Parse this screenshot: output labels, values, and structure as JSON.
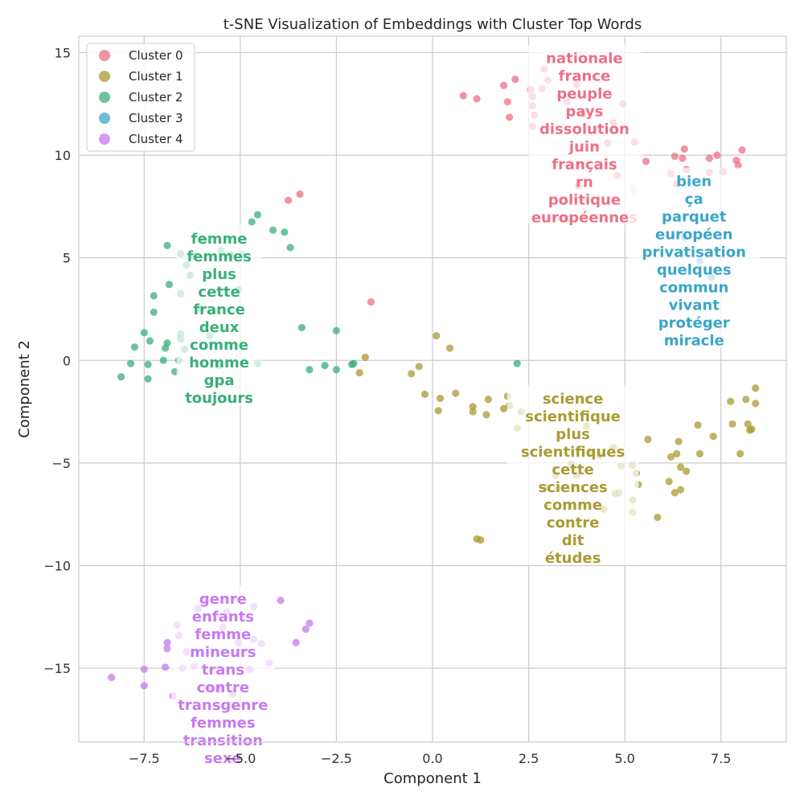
{
  "chart_data": {
    "type": "scatter",
    "title": "t-SNE Visualization of Embeddings with Cluster Top Words",
    "xlabel": "Component 1",
    "ylabel": "Component 2",
    "xlim": [
      -9.2,
      9.2
    ],
    "ylim": [
      -18.6,
      15.8
    ],
    "xticks": [
      -7.5,
      -5.0,
      -2.5,
      0.0,
      2.5,
      5.0,
      7.5
    ],
    "xtick_labels": [
      "−7.5",
      "−5.0",
      "−2.5",
      "0.0",
      "2.5",
      "5.0",
      "7.5"
    ],
    "yticks": [
      15,
      10,
      5,
      0,
      -5,
      -10,
      -15
    ],
    "ytick_labels": [
      "15",
      "10",
      "5",
      "0",
      "−5",
      "−10",
      "−15"
    ],
    "grid": true,
    "legend_position": "top-left",
    "series": [
      {
        "name": "Cluster 0",
        "color": "#ee6f86",
        "points": [
          [
            0.8,
            12.9
          ],
          [
            1.15,
            12.75
          ],
          [
            1.85,
            13.4
          ],
          [
            1.95,
            12.6
          ],
          [
            2.0,
            11.85
          ],
          [
            2.15,
            13.7
          ],
          [
            2.55,
            13.2
          ],
          [
            2.6,
            12.85
          ],
          [
            2.6,
            12.4
          ],
          [
            2.65,
            11.95
          ],
          [
            2.6,
            11.4
          ],
          [
            2.85,
            13.25
          ],
          [
            2.9,
            14.2
          ],
          [
            3.0,
            13.65
          ],
          [
            3.5,
            12.6
          ],
          [
            3.75,
            13.45
          ],
          [
            3.8,
            8.5
          ],
          [
            3.9,
            12.0
          ],
          [
            4.55,
            10.6
          ],
          [
            4.7,
            11.6
          ],
          [
            4.8,
            9.0
          ],
          [
            4.95,
            12.5
          ],
          [
            5.2,
            8.4
          ],
          [
            5.25,
            8.2
          ],
          [
            5.25,
            10.65
          ],
          [
            5.55,
            9.7
          ],
          [
            6.2,
            9.1
          ],
          [
            6.3,
            9.95
          ],
          [
            6.35,
            8.6
          ],
          [
            6.5,
            9.85
          ],
          [
            6.55,
            10.3
          ],
          [
            6.6,
            9.3
          ],
          [
            7.2,
            9.85
          ],
          [
            7.2,
            9.15
          ],
          [
            7.4,
            10.0
          ],
          [
            7.55,
            9.2
          ],
          [
            7.9,
            9.75
          ],
          [
            7.95,
            9.5
          ],
          [
            8.05,
            10.25
          ],
          [
            -3.75,
            7.8
          ],
          [
            -3.45,
            8.1
          ],
          [
            -1.6,
            2.85
          ]
        ]
      },
      {
        "name": "Cluster 1",
        "color": "#a99b32",
        "points": [
          [
            -1.9,
            -0.6
          ],
          [
            -1.75,
            0.15
          ],
          [
            -0.55,
            -0.65
          ],
          [
            -0.35,
            -0.3
          ],
          [
            -0.2,
            -1.65
          ],
          [
            0.1,
            1.2
          ],
          [
            0.15,
            -2.45
          ],
          [
            0.2,
            -1.85
          ],
          [
            0.45,
            0.6
          ],
          [
            0.6,
            -1.6
          ],
          [
            1.05,
            -2.25
          ],
          [
            1.05,
            -2.5
          ],
          [
            1.15,
            -8.7
          ],
          [
            1.25,
            -8.75
          ],
          [
            1.4,
            -2.65
          ],
          [
            1.45,
            -1.9
          ],
          [
            1.85,
            -2.35
          ],
          [
            1.95,
            -1.75
          ],
          [
            2.0,
            -2.2
          ],
          [
            2.2,
            -3.3
          ],
          [
            2.3,
            -2.5
          ],
          [
            2.95,
            -6.2
          ],
          [
            3.2,
            -5.6
          ],
          [
            3.25,
            -6.25
          ],
          [
            3.6,
            -5.05
          ],
          [
            3.75,
            -5.6
          ],
          [
            4.0,
            -3.2
          ],
          [
            4.15,
            -4.5
          ],
          [
            4.35,
            -4.65
          ],
          [
            4.45,
            -7.25
          ],
          [
            4.7,
            -4.25
          ],
          [
            4.75,
            -6.5
          ],
          [
            4.85,
            -6.45
          ],
          [
            4.9,
            -5.15
          ],
          [
            5.2,
            -5.1
          ],
          [
            5.2,
            -6.8
          ],
          [
            5.2,
            -7.4
          ],
          [
            5.3,
            -5.5
          ],
          [
            5.35,
            -6.05
          ],
          [
            5.6,
            -3.85
          ],
          [
            5.85,
            -7.65
          ],
          [
            6.15,
            -5.9
          ],
          [
            6.2,
            -4.7
          ],
          [
            6.3,
            -6.45
          ],
          [
            6.4,
            -3.95
          ],
          [
            6.35,
            -4.55
          ],
          [
            6.45,
            -5.2
          ],
          [
            6.45,
            -6.3
          ],
          [
            6.6,
            -5.4
          ],
          [
            6.9,
            -3.15
          ],
          [
            6.95,
            -4.55
          ],
          [
            7.3,
            -3.7
          ],
          [
            7.75,
            -2.0
          ],
          [
            7.8,
            -3.1
          ],
          [
            8.0,
            -4.55
          ],
          [
            8.15,
            -1.9
          ],
          [
            8.2,
            -3.1
          ],
          [
            8.25,
            -3.4
          ],
          [
            8.3,
            -3.35
          ],
          [
            8.4,
            -2.1
          ],
          [
            8.4,
            -1.35
          ]
        ]
      },
      {
        "name": "Cluster 2",
        "color": "#3aaf79",
        "points": [
          [
            -8.1,
            -0.8
          ],
          [
            -7.85,
            -0.15
          ],
          [
            -7.75,
            0.65
          ],
          [
            -7.5,
            1.35
          ],
          [
            -7.4,
            -0.2
          ],
          [
            -7.4,
            -0.9
          ],
          [
            -7.35,
            0.95
          ],
          [
            -7.25,
            3.15
          ],
          [
            -7.25,
            2.35
          ],
          [
            -7.0,
            0.0
          ],
          [
            -6.95,
            0.6
          ],
          [
            -6.9,
            0.85
          ],
          [
            -6.9,
            5.6
          ],
          [
            -6.85,
            3.7
          ],
          [
            -6.7,
            -0.55
          ],
          [
            -6.6,
            0.0
          ],
          [
            -6.55,
            1.05
          ],
          [
            -6.55,
            1.3
          ],
          [
            -6.55,
            3.25
          ],
          [
            -6.55,
            5.2
          ],
          [
            -6.45,
            0.55
          ],
          [
            -6.4,
            4.65
          ],
          [
            -6.3,
            4.15
          ],
          [
            -6.2,
            5.1
          ],
          [
            -6.05,
            2.5
          ],
          [
            -5.95,
            5.85
          ],
          [
            -5.8,
            1.2
          ],
          [
            -5.55,
            -0.25
          ],
          [
            -5.5,
            5.35
          ],
          [
            -5.25,
            5.15
          ],
          [
            -5.05,
            3.45
          ],
          [
            -4.95,
            5.15
          ],
          [
            -4.7,
            6.75
          ],
          [
            -4.55,
            7.1
          ],
          [
            -4.55,
            -0.15
          ],
          [
            -4.15,
            6.35
          ],
          [
            -3.85,
            6.25
          ],
          [
            -3.7,
            5.5
          ],
          [
            -3.4,
            1.6
          ],
          [
            -3.2,
            -0.45
          ],
          [
            -2.8,
            -0.25
          ],
          [
            -2.5,
            1.45
          ],
          [
            -2.5,
            -0.45
          ],
          [
            -2.1,
            -0.2
          ],
          [
            -2.05,
            -0.15
          ],
          [
            2.2,
            -0.15
          ]
        ]
      },
      {
        "name": "Cluster 3",
        "color": "#3aa6c8",
        "points": [
          [
            6.55,
            6.0
          ],
          [
            6.95,
            4.85
          ],
          [
            7.25,
            4.05
          ]
        ]
      },
      {
        "name": "Cluster 4",
        "color": "#c77af0",
        "points": [
          [
            -8.35,
            -15.45
          ],
          [
            -7.5,
            -15.05
          ],
          [
            -7.5,
            -15.85
          ],
          [
            -6.95,
            -14.95
          ],
          [
            -6.9,
            -14.05
          ],
          [
            -6.9,
            -13.75
          ],
          [
            -6.75,
            -16.35
          ],
          [
            -6.65,
            -12.9
          ],
          [
            -6.6,
            -13.4
          ],
          [
            -6.5,
            -15.0
          ],
          [
            -6.4,
            -14.2
          ],
          [
            -6.2,
            -14.9
          ],
          [
            -6.1,
            -12.1
          ],
          [
            -5.85,
            -15.95
          ],
          [
            -5.55,
            -16.05
          ],
          [
            -5.45,
            -13.0
          ],
          [
            -5.35,
            -12.25
          ],
          [
            -5.2,
            -16.25
          ],
          [
            -5.05,
            -13.75
          ],
          [
            -4.75,
            -15.05
          ],
          [
            -4.65,
            -12.0
          ],
          [
            -4.65,
            -13.6
          ],
          [
            -4.45,
            -13.8
          ],
          [
            -4.25,
            -14.75
          ],
          [
            -3.95,
            -11.7
          ],
          [
            -3.55,
            -13.75
          ],
          [
            -3.3,
            -13.1
          ],
          [
            -3.2,
            -12.8
          ]
        ]
      }
    ],
    "annotations": [
      {
        "cluster": "Cluster 0",
        "center": [
          3.95,
          10.85
        ],
        "words": [
          "nationale",
          "france",
          "peuple",
          "pays",
          "dissolution",
          "juin",
          "français",
          "rn",
          "politique",
          "européennes"
        ]
      },
      {
        "cluster": "Cluster 1",
        "center": [
          3.65,
          -5.75
        ],
        "words": [
          "science",
          "scientifique",
          "plus",
          "scientifiques",
          "cette",
          "sciences",
          "comme",
          "contre",
          "dit",
          "études"
        ]
      },
      {
        "cluster": "Cluster 2",
        "center": [
          -5.55,
          2.05
        ],
        "words": [
          "femme",
          "femmes",
          "plus",
          "cette",
          "france",
          "deux",
          "comme",
          "homme",
          "gpa",
          "toujours"
        ]
      },
      {
        "cluster": "Cluster 3",
        "center": [
          6.8,
          4.85
        ],
        "words": [
          "bien",
          "ça",
          "parquet",
          "européen",
          "privatisation",
          "quelques",
          "commun",
          "vivant",
          "protéger",
          "miracle"
        ]
      },
      {
        "cluster": "Cluster 4",
        "center": [
          -5.45,
          -15.5
        ],
        "words": [
          "genre",
          "enfants",
          "femme",
          "mineurs",
          "trans",
          "contre",
          "transgenre",
          "femmes",
          "transition",
          "sexe"
        ]
      }
    ]
  }
}
